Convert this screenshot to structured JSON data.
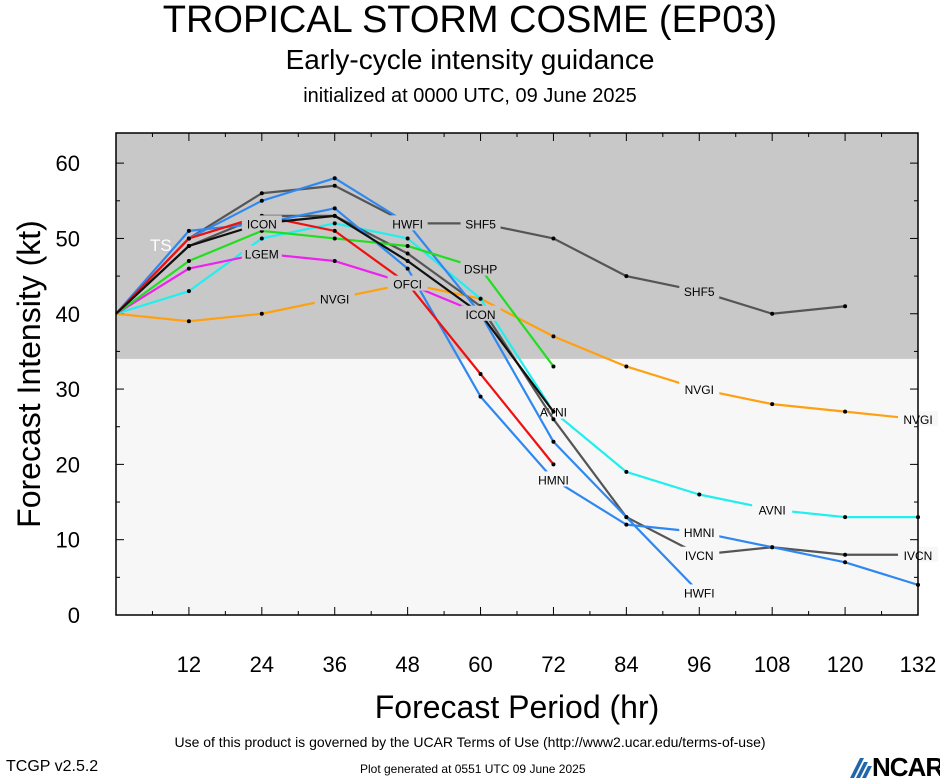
{
  "title": "TROPICAL STORM COSME (EP03)",
  "subtitle": "Early-cycle intensity guidance",
  "initialized": "initialized at 0000 UTC, 09 June 2025",
  "footer": {
    "terms": "Use of this product is governed by the UCAR Terms of Use (http://www2.ucar.edu/terms-of-use)",
    "version": "TCGP v2.5.2",
    "generated": "Plot generated at 0551 UTC   09 June 2025",
    "logo": "NCAR"
  },
  "chart_data": {
    "type": "line",
    "xlabel": "Forecast Period (hr)",
    "ylabel": "Forecast Intensity (kt)",
    "xlim": [
      0,
      132
    ],
    "ylim": [
      0,
      64
    ],
    "xticks": [
      12,
      24,
      36,
      48,
      60,
      72,
      84,
      96,
      108,
      120,
      132
    ],
    "yticks": [
      0,
      10,
      20,
      30,
      40,
      50,
      60
    ],
    "bands": [
      {
        "label": "TS",
        "from": 34,
        "to": 64,
        "color": "#c8c8c8"
      },
      {
        "label": "",
        "from": 0,
        "to": 34,
        "color": "#f7f7f7"
      }
    ],
    "series": [
      {
        "name": "SHF5",
        "color": "#555555",
        "x": [
          0,
          12,
          24,
          36,
          48,
          60,
          72,
          84,
          96,
          108,
          120
        ],
        "y": [
          40,
          50,
          56,
          57,
          52,
          52,
          50,
          45,
          43,
          40,
          41
        ]
      },
      {
        "name": "NVGI",
        "color": "#ffa010",
        "x": [
          0,
          12,
          24,
          36,
          48,
          60,
          72,
          84,
          96,
          108,
          120,
          132
        ],
        "y": [
          40,
          39,
          40,
          42,
          44,
          42,
          37,
          33,
          30,
          28,
          27,
          26
        ]
      },
      {
        "name": "AVNI",
        "color": "#22eeee",
        "x": [
          0,
          12,
          24,
          36,
          48,
          60,
          72,
          84,
          96,
          108,
          120,
          132
        ],
        "y": [
          40,
          43,
          50,
          52,
          50,
          42,
          27,
          19,
          16,
          14,
          13,
          13
        ]
      },
      {
        "name": "IVCN",
        "color": "#555555",
        "x": [
          0,
          12,
          24,
          36,
          48,
          60,
          72,
          84,
          96,
          108,
          120,
          132
        ],
        "y": [
          40,
          49,
          53,
          53,
          48,
          41,
          26,
          13,
          8,
          9,
          8,
          8
        ]
      },
      {
        "name": "HMNI",
        "color": "#2f88f0",
        "x": [
          0,
          12,
          24,
          36,
          48,
          60,
          72,
          84,
          96,
          108,
          120,
          132
        ],
        "y": [
          40,
          51,
          52,
          54,
          46,
          29,
          18,
          12,
          11,
          9,
          7,
          4
        ]
      },
      {
        "name": "HWFI",
        "color": "#2f88f0",
        "x": [
          0,
          12,
          24,
          36,
          48,
          60,
          72,
          84,
          96
        ],
        "y": [
          40,
          50,
          55,
          58,
          52,
          40,
          23,
          13,
          3
        ]
      },
      {
        "name": "LGEM",
        "color": "#ee22ee",
        "x": [
          0,
          12,
          24,
          36,
          48,
          60
        ],
        "y": [
          40,
          46,
          48,
          47,
          44,
          40
        ]
      },
      {
        "name": "DSHP",
        "color": "#22dd22",
        "x": [
          0,
          12,
          24,
          36,
          48,
          60,
          72
        ],
        "y": [
          40,
          47,
          51,
          50,
          49,
          46,
          33
        ]
      },
      {
        "name": "OFCI",
        "color": "#ee1111",
        "x": [
          0,
          12,
          24,
          36,
          48,
          60,
          72
        ],
        "y": [
          40,
          50,
          53,
          51,
          44,
          32,
          20
        ]
      },
      {
        "name": "ICON",
        "color": "#111111",
        "x": [
          0,
          12,
          24,
          36,
          48,
          60,
          72
        ],
        "y": [
          40,
          49,
          52,
          53,
          47,
          40,
          27
        ]
      }
    ]
  }
}
